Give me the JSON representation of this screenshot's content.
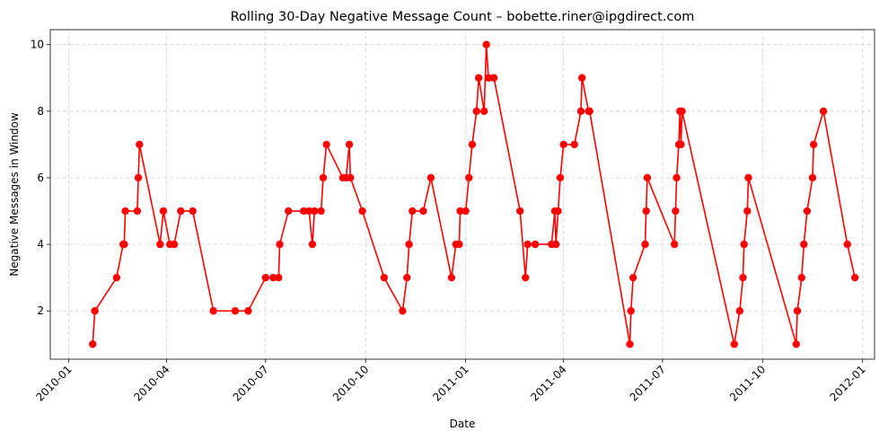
{
  "chart_data": {
    "type": "line",
    "title": "Rolling 30-Day Negative Message Count – bobette.riner@ipgdirect.com",
    "xlabel": "Date",
    "ylabel": "Negative Messages in Window",
    "xlim": [
      "2009-12-15",
      "2012-01-12"
    ],
    "ylim": [
      0.55,
      10.45
    ],
    "grid": true,
    "line_color": "#ff0000",
    "marker_color": "#ff0000",
    "x_ticks": [
      "2010-01",
      "2010-04",
      "2010-07",
      "2010-10",
      "2011-01",
      "2011-04",
      "2011-07",
      "2011-10",
      "2012-01"
    ],
    "y_ticks": [
      2,
      4,
      6,
      8,
      10
    ],
    "series": [
      {
        "x": [
          "2010-01-23",
          "2010-01-25",
          "2010-02-14",
          "2010-02-20",
          "2010-02-21",
          "2010-02-22",
          "2010-03-05",
          "2010-03-06",
          "2010-03-07",
          "2010-03-26",
          "2010-03-29",
          "2010-04-04",
          "2010-04-08",
          "2010-04-14",
          "2010-04-25",
          "2010-05-14",
          "2010-06-03",
          "2010-06-15",
          "2010-07-01",
          "2010-07-08",
          "2010-07-13",
          "2010-07-14",
          "2010-07-22",
          "2010-08-05",
          "2010-08-10",
          "2010-08-13",
          "2010-08-15",
          "2010-08-21",
          "2010-08-23",
          "2010-08-26",
          "2010-09-10",
          "2010-09-13",
          "2010-09-16",
          "2010-09-17",
          "2010-09-28",
          "2010-10-18",
          "2010-11-04",
          "2010-11-08",
          "2010-11-10",
          "2010-11-13",
          "2010-11-23",
          "2010-11-30",
          "2010-12-19",
          "2010-12-23",
          "2010-12-26",
          "2010-12-27",
          "2011-01-01",
          "2011-01-04",
          "2011-01-07",
          "2011-01-11",
          "2011-01-13",
          "2011-01-18",
          "2011-01-20",
          "2011-01-22",
          "2011-01-27",
          "2011-02-20",
          "2011-02-25",
          "2011-02-27",
          "2011-03-06",
          "2011-03-21",
          "2011-03-24",
          "2011-03-25",
          "2011-03-27",
          "2011-03-29",
          "2011-04-01",
          "2011-04-11",
          "2011-04-17",
          "2011-04-18",
          "2011-04-24",
          "2011-04-25",
          "2011-06-01",
          "2011-06-02",
          "2011-06-04",
          "2011-06-15",
          "2011-06-16",
          "2011-06-17",
          "2011-07-12",
          "2011-07-13",
          "2011-07-14",
          "2011-07-16",
          "2011-07-17",
          "2011-07-18",
          "2011-07-19",
          "2011-09-05",
          "2011-09-10",
          "2011-09-13",
          "2011-09-14",
          "2011-09-17",
          "2011-09-18",
          "2011-11-01",
          "2011-11-02",
          "2011-11-06",
          "2011-11-08",
          "2011-11-11",
          "2011-11-16",
          "2011-11-17",
          "2011-11-26",
          "2011-12-18",
          "2011-12-25"
        ],
        "y": [
          1,
          2,
          3,
          4,
          4,
          5,
          5,
          6,
          7,
          4,
          5,
          4,
          4,
          5,
          5,
          2,
          2,
          2,
          3,
          3,
          3,
          4,
          5,
          5,
          5,
          4,
          5,
          5,
          6,
          7,
          6,
          6,
          7,
          6,
          5,
          3,
          2,
          3,
          4,
          5,
          5,
          6,
          3,
          4,
          4,
          5,
          5,
          6,
          7,
          8,
          9,
          8,
          10,
          9,
          9,
          5,
          3,
          4,
          4,
          4,
          5,
          4,
          5,
          6,
          7,
          7,
          8,
          9,
          8,
          8,
          1,
          2,
          3,
          4,
          5,
          6,
          4,
          5,
          6,
          7,
          8,
          7,
          8,
          1,
          2,
          3,
          4,
          5,
          6,
          1,
          2,
          3,
          4,
          5,
          6,
          7,
          8,
          4,
          3
        ]
      }
    ]
  }
}
